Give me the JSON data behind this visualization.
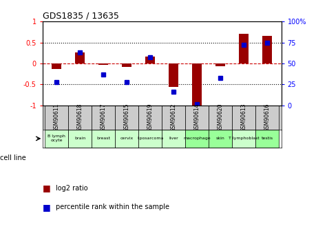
{
  "title": "GDS1835 / 13635",
  "samples": [
    "GSM90611",
    "GSM90618",
    "GSM90617",
    "GSM90615",
    "GSM90619",
    "GSM90612",
    "GSM90614",
    "GSM90620",
    "GSM90613",
    "GSM90616"
  ],
  "cell_lines": [
    "B lymph\nocyte",
    "brain",
    "breast",
    "cervix",
    "liposarcoma",
    "liver",
    "macrophage",
    "skin",
    "T lymphoblast",
    "testis"
  ],
  "cell_line_colors": [
    "#ccffcc",
    "#ccffcc",
    "#ccffcc",
    "#ccffcc",
    "#ccffcc",
    "#ccffcc",
    "#99ff99",
    "#99ff99",
    "#ccffcc",
    "#99ff99"
  ],
  "log2_ratio": [
    -0.13,
    0.27,
    -0.04,
    -0.08,
    0.17,
    -0.55,
    -1.02,
    -0.06,
    0.7,
    0.65
  ],
  "percentile_rank": [
    28,
    63,
    37,
    28,
    57,
    16,
    2,
    33,
    72,
    75
  ],
  "ylim_left": [
    -1,
    1
  ],
  "bar_color": "#990000",
  "dot_color": "#0000cc",
  "zero_line_color": "#cc0000",
  "sample_bg_color": "#cccccc",
  "bar_width": 0.4
}
